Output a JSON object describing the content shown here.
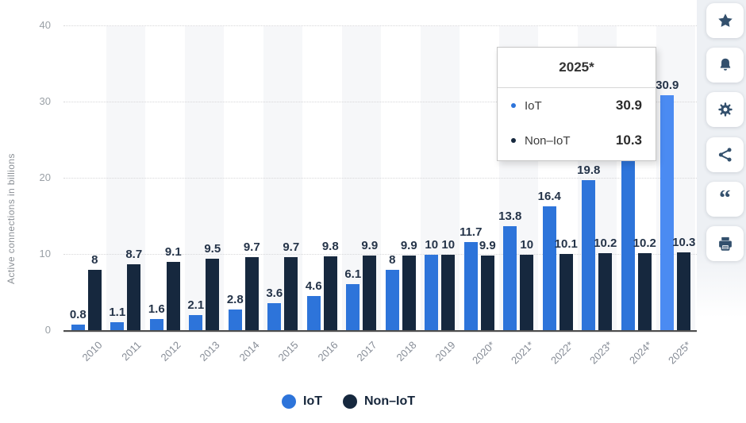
{
  "chart_data": {
    "type": "bar",
    "title": "",
    "xlabel": "",
    "ylabel": "Active connections in billions",
    "ylim": [
      0,
      40
    ],
    "yticks": [
      0,
      10,
      20,
      30,
      40
    ],
    "grid": "horizontal-dotted",
    "legend_position": "bottom-center",
    "categories": [
      "2010",
      "2011",
      "2012",
      "2013",
      "2014",
      "2015",
      "2016",
      "2017",
      "2018",
      "2019",
      "2020*",
      "2021*",
      "2022*",
      "2023*",
      "2024*",
      "2025*"
    ],
    "series": [
      {
        "name": "IoT",
        "color": "#2d74da",
        "values": [
          0.8,
          1.1,
          1.6,
          2.1,
          2.8,
          3.6,
          4.6,
          6.1,
          8,
          10,
          11.7,
          13.8,
          16.4,
          19.8,
          24.4,
          30.9
        ],
        "labels": [
          "0.8",
          "1.1",
          "1.6",
          "2.1",
          "2.8",
          "3.6",
          "4.6",
          "6.1",
          "8",
          "10",
          "11.7",
          "13.8",
          "16.4",
          "19.8",
          "",
          "30.9"
        ]
      },
      {
        "name": "Non–IoT",
        "color": "#16283e",
        "values": [
          8,
          8.7,
          9.1,
          9.5,
          9.7,
          9.7,
          9.8,
          9.9,
          9.9,
          10,
          9.9,
          10,
          10.1,
          10.2,
          10.2,
          10.3
        ],
        "labels": [
          "8",
          "8.7",
          "9.1",
          "9.5",
          "9.7",
          "9.7",
          "9.8",
          "9.9",
          "9.9",
          "10",
          "9.9",
          "10",
          "10.1",
          "10.2",
          "10.2",
          "10.3"
        ]
      }
    ],
    "highlight": {
      "category_index": 15,
      "series": "IoT",
      "color": "#4b8bf2"
    },
    "banded_category_indices": [
      1,
      3,
      5,
      7,
      9,
      11,
      13,
      15
    ]
  },
  "tooltip": {
    "title": "2025*",
    "rows": [
      {
        "label": "IoT",
        "value": "30.9",
        "color": "#2d74da"
      },
      {
        "label": "Non–IoT",
        "value": "10.3",
        "color": "#16283e"
      }
    ]
  },
  "legend": {
    "items": [
      {
        "label": "IoT",
        "color": "#2d74da"
      },
      {
        "label": "Non–IoT",
        "color": "#16283e"
      }
    ]
  },
  "sidebar": {
    "icon_color": "#33506d",
    "buttons": [
      {
        "name": "favorite-button",
        "icon": "star-icon"
      },
      {
        "name": "alerts-button",
        "icon": "bell-icon"
      },
      {
        "name": "settings-button",
        "icon": "gear-icon"
      },
      {
        "name": "share-button",
        "icon": "share-icon"
      },
      {
        "name": "cite-button",
        "icon": "quote-icon"
      },
      {
        "name": "print-button",
        "icon": "printer-icon"
      }
    ]
  }
}
